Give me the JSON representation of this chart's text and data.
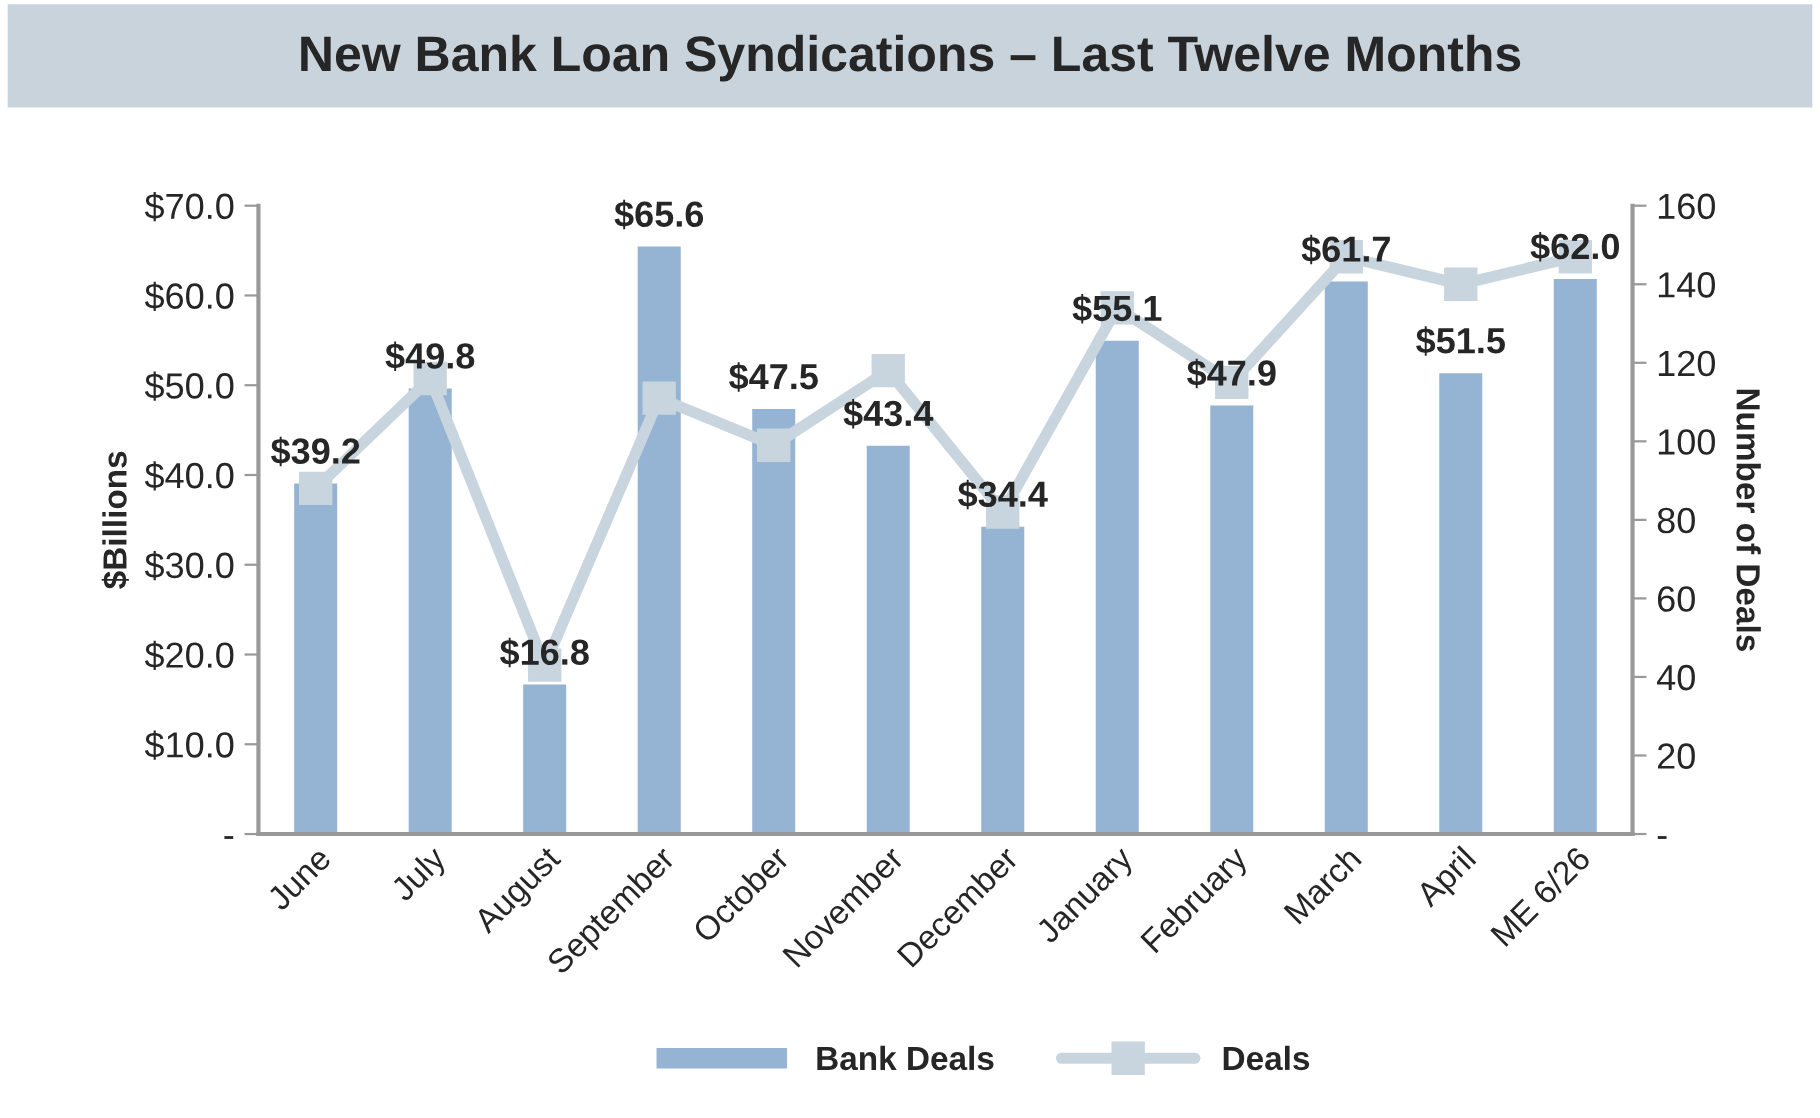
{
  "chart_data": {
    "type": "bar",
    "title": "New Bank Loan Syndications – Last Twelve Months",
    "ylabel": "$Billions",
    "y2label": "Number of Deals",
    "categories": [
      "June",
      "July",
      "August",
      "September",
      "October",
      "November",
      "December",
      "January",
      "February",
      "March",
      "April",
      "ME 6/26"
    ],
    "series": [
      {
        "name": "Bank Deals",
        "color": "#95b3d3",
        "values": [
          39.2,
          49.8,
          16.8,
          65.6,
          47.5,
          43.4,
          34.4,
          55.1,
          47.9,
          61.7,
          51.5,
          62.0
        ],
        "value_labels": [
          "$39.2",
          "$49.8",
          "$16.8",
          "$65.6",
          "$47.5",
          "$43.4",
          "$34.4",
          "$55.1",
          "$47.9",
          "$61.7",
          "$51.5",
          "$62.0"
        ]
      },
      {
        "name": "Deals",
        "type": "line",
        "axis": "y2",
        "color": "#c8d5de",
        "marker": "square",
        "values": [
          88,
          116,
          43,
          111,
          99,
          118,
          82,
          134,
          115,
          147,
          140,
          147
        ]
      }
    ],
    "ylim": [
      0,
      70
    ],
    "yticks": [
      {
        "value": 0,
        "label": "-"
      },
      {
        "value": 10,
        "label": "$10.0"
      },
      {
        "value": 20,
        "label": "$20.0"
      },
      {
        "value": 30,
        "label": "$30.0"
      },
      {
        "value": 40,
        "label": "$40.0"
      },
      {
        "value": 50,
        "label": "$50.0"
      },
      {
        "value": 60,
        "label": "$60.0"
      },
      {
        "value": 70,
        "label": "$70.0"
      }
    ],
    "y2lim": [
      0,
      160
    ],
    "y2ticks": [
      {
        "value": 0,
        "label": "-"
      },
      20,
      40,
      60,
      80,
      100,
      120,
      140,
      160
    ],
    "legend": "bottom",
    "grid": false
  }
}
